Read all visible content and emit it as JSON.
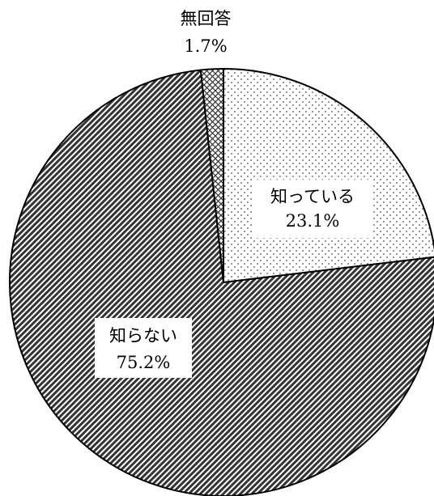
{
  "chart_data": {
    "type": "pie",
    "title": "",
    "start": "top",
    "direction": "clockwise",
    "slices": [
      {
        "label": "知っている",
        "value": 23.1,
        "value_label": "23.1%",
        "pattern": "dots"
      },
      {
        "label": "知らない",
        "value": 75.2,
        "value_label": "75.2%",
        "pattern": "diagonal-hatch"
      },
      {
        "label": "無回答",
        "value": 1.7,
        "value_label": "1.7%",
        "pattern": "crosshatch"
      }
    ],
    "colors": {
      "outline": "#000000",
      "background": "#ffffff",
      "hatch": "#333333",
      "dots": "#555555",
      "label_box": "#ffffff"
    }
  }
}
